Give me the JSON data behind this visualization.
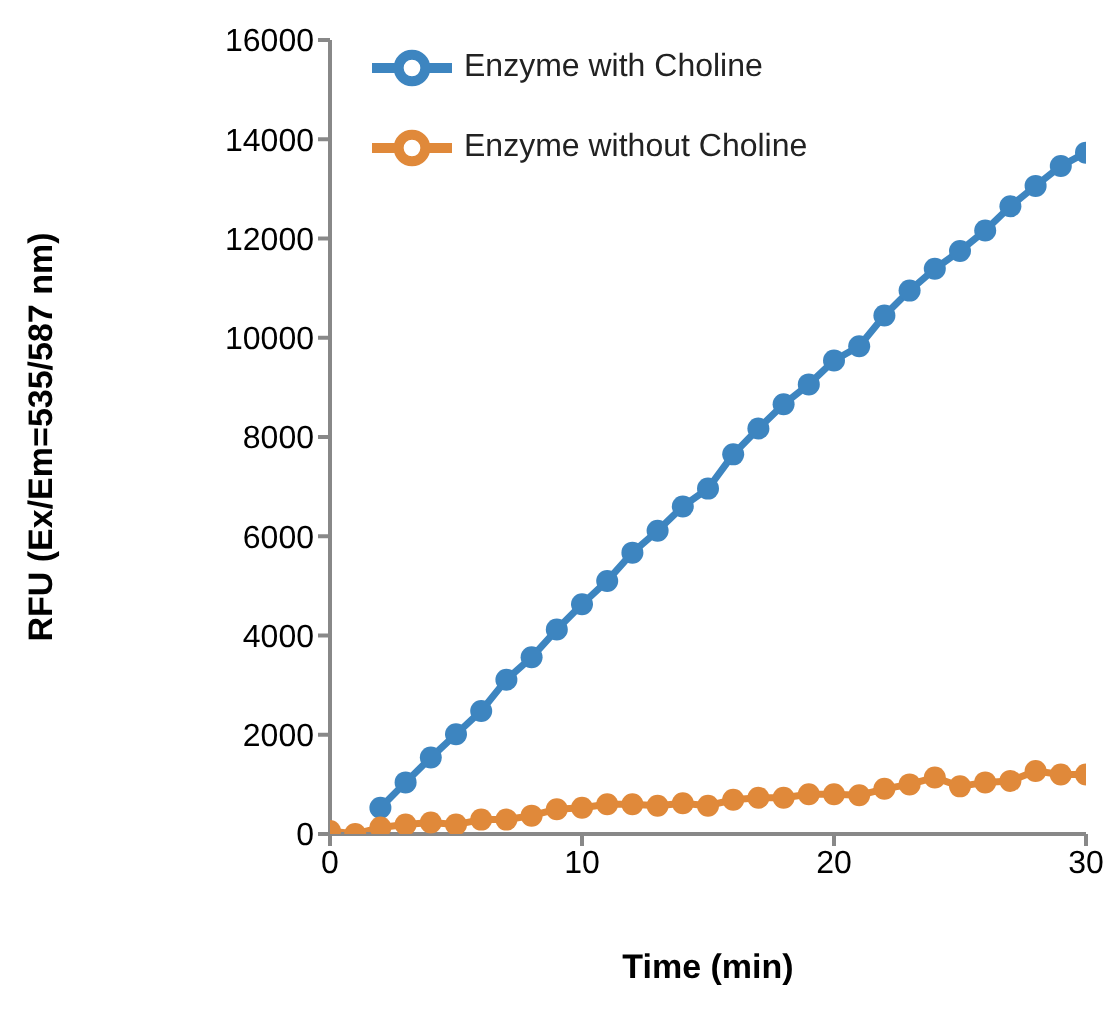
{
  "chart_data": {
    "type": "line",
    "xlabel": "Time (min)",
    "ylabel": "RFU (Ex/Em=535/587 nm)",
    "x": [
      0,
      1,
      2,
      3,
      4,
      5,
      6,
      7,
      8,
      9,
      10,
      11,
      12,
      13,
      14,
      15,
      16,
      17,
      18,
      19,
      20,
      21,
      22,
      23,
      24,
      25,
      26,
      27,
      28,
      29,
      30
    ],
    "series": [
      {
        "name": "Enzyme with Choline",
        "color": "#3d85c0",
        "values": [
          null,
          null,
          530,
          1040,
          1540,
          2010,
          2480,
          3110,
          3560,
          4120,
          4630,
          5100,
          5670,
          6110,
          6600,
          6960,
          7650,
          8170,
          8660,
          9060,
          9540,
          9830,
          10450,
          10950,
          11390,
          11750,
          12160,
          12650,
          13060,
          13460,
          13730
        ]
      },
      {
        "name": "Enzyme without Choline",
        "color": "#e0893a",
        "values": [
          60,
          0,
          130,
          190,
          230,
          190,
          290,
          290,
          370,
          500,
          530,
          600,
          600,
          570,
          620,
          570,
          690,
          730,
          730,
          800,
          800,
          780,
          910,
          1000,
          1140,
          960,
          1040,
          1070,
          1270,
          1200,
          1200
        ]
      }
    ],
    "xlim": [
      0,
      30
    ],
    "xticks": [
      0,
      10,
      20,
      30
    ],
    "ylim": [
      0,
      16000
    ],
    "yticks": [
      0,
      2000,
      4000,
      6000,
      8000,
      10000,
      12000,
      14000,
      16000
    ],
    "grid": false,
    "legend": "top left",
    "marker": "circle",
    "line_style": "solid"
  }
}
